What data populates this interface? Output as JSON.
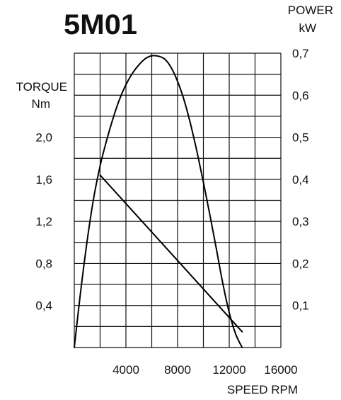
{
  "chart_data": {
    "type": "line",
    "title": "5M01",
    "xlabel": "SPEED RPM",
    "xlim": [
      0,
      16000
    ],
    "x_ticks": [
      "4000",
      "8000",
      "12000",
      "16000"
    ],
    "left_axis": {
      "label_line1": "TORQUE",
      "label_line2": "Nm",
      "ylim": [
        0,
        2.8
      ],
      "ticks": [
        "0,4",
        "0,8",
        "1,2",
        "1,6",
        "2,0"
      ]
    },
    "right_axis": {
      "label_line1": "POWER",
      "label_line2": "kW",
      "ylim": [
        0,
        0.7
      ],
      "ticks": [
        "0,1",
        "0,2",
        "0,3",
        "0,4",
        "0,5",
        "0,6",
        "0,7"
      ]
    },
    "grid": true,
    "series": [
      {
        "axis": "right",
        "x": [
          0,
          500,
          1000,
          1500,
          2000,
          2500,
          3000,
          3500,
          4000,
          4500,
          5000,
          5500,
          6000,
          6500,
          7000,
          7500,
          8000,
          8500,
          9000,
          9500,
          10000,
          10500,
          11000,
          11500,
          12000,
          12500,
          13000
        ],
        "values": [
          0,
          0.135,
          0.255,
          0.355,
          0.432,
          0.492,
          0.545,
          0.59,
          0.625,
          0.652,
          0.672,
          0.687,
          0.694,
          0.693,
          0.686,
          0.666,
          0.633,
          0.589,
          0.532,
          0.466,
          0.393,
          0.316,
          0.235,
          0.153,
          0.083,
          0.032,
          0
        ]
      },
      {
        "axis": "left",
        "x": [
          2000,
          13000
        ],
        "values": [
          1.64,
          0.15
        ]
      }
    ]
  }
}
